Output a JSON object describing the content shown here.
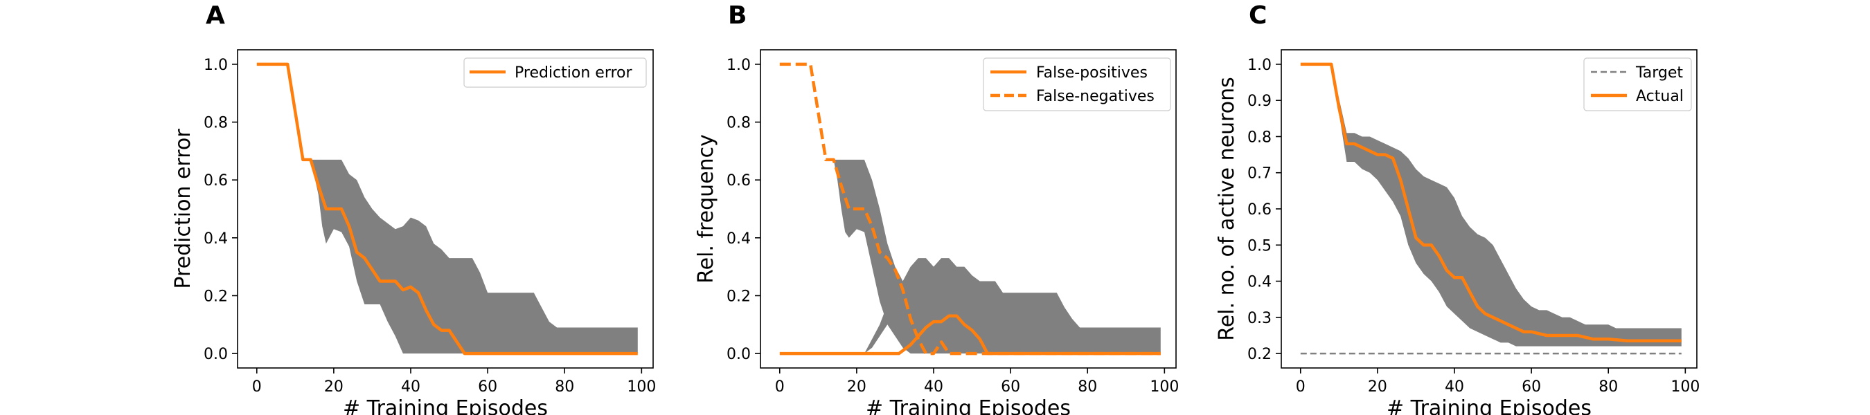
{
  "chart_data": [
    {
      "type": "line",
      "panel": "A",
      "xlabel": "# Training Episodes",
      "ylabel": "Prediction error",
      "xlim": [
        -5,
        103
      ],
      "ylim": [
        -0.05,
        1.05
      ],
      "xticks": [
        0,
        20,
        40,
        60,
        80,
        100
      ],
      "yticks": [
        0.0,
        0.2,
        0.4,
        0.6,
        0.8,
        1.0
      ],
      "ytick_decimals": 1,
      "legend_position": "upper-right",
      "band": {
        "color": "#808080",
        "x": [
          0,
          8,
          12,
          14,
          16,
          17,
          18,
          20,
          22,
          24,
          26,
          28,
          30,
          32,
          34,
          36,
          38,
          40,
          42,
          44,
          46,
          48,
          50,
          52,
          54,
          56,
          58,
          60,
          62,
          64,
          66,
          68,
          70,
          72,
          74,
          76,
          78,
          80,
          85,
          90,
          95,
          99
        ],
        "lower": [
          1.0,
          1.0,
          0.67,
          0.67,
          0.55,
          0.44,
          0.38,
          0.43,
          0.42,
          0.37,
          0.25,
          0.17,
          0.17,
          0.17,
          0.11,
          0.06,
          0.0,
          0.0,
          0.0,
          0.0,
          0.0,
          0.0,
          0.0,
          0.0,
          0.0,
          0.0,
          0.0,
          0.0,
          0.0,
          0.0,
          0.0,
          0.0,
          0.0,
          0.0,
          0.0,
          0.0,
          0.0,
          0.0,
          0.0,
          0.0,
          0.0,
          0.0
        ],
        "upper": [
          1.0,
          1.0,
          0.67,
          0.67,
          0.67,
          0.67,
          0.67,
          0.67,
          0.67,
          0.62,
          0.6,
          0.54,
          0.5,
          0.47,
          0.45,
          0.43,
          0.44,
          0.47,
          0.46,
          0.44,
          0.38,
          0.36,
          0.33,
          0.33,
          0.33,
          0.33,
          0.28,
          0.21,
          0.21,
          0.21,
          0.21,
          0.21,
          0.21,
          0.21,
          0.16,
          0.11,
          0.09,
          0.09,
          0.09,
          0.09,
          0.09,
          0.09
        ]
      },
      "series": [
        {
          "name": "Prediction error",
          "color": "#ff7f0e",
          "dash": "solid",
          "x": [
            0,
            8,
            12,
            14,
            16,
            18,
            20,
            22,
            24,
            26,
            28,
            30,
            32,
            34,
            36,
            38,
            40,
            42,
            44,
            46,
            48,
            50,
            52,
            54,
            56,
            60,
            70,
            80,
            90,
            99
          ],
          "y": [
            1.0,
            1.0,
            0.67,
            0.67,
            0.58,
            0.5,
            0.5,
            0.5,
            0.44,
            0.35,
            0.33,
            0.29,
            0.25,
            0.25,
            0.25,
            0.22,
            0.23,
            0.21,
            0.15,
            0.1,
            0.08,
            0.08,
            0.04,
            0.0,
            0.0,
            0.0,
            0.0,
            0.0,
            0.0,
            0.0
          ]
        }
      ]
    },
    {
      "type": "line",
      "panel": "B",
      "xlabel": "# Training Episodes",
      "ylabel": "Rel. frequency",
      "xlim": [
        -5,
        103
      ],
      "ylim": [
        -0.05,
        1.05
      ],
      "xticks": [
        0,
        20,
        40,
        60,
        80,
        100
      ],
      "yticks": [
        0.0,
        0.2,
        0.4,
        0.6,
        0.8,
        1.0
      ],
      "ytick_decimals": 1,
      "legend_position": "upper-right",
      "band": {
        "color": "#808080",
        "x": [
          14,
          15,
          16,
          17,
          18,
          20,
          22,
          24,
          26,
          28,
          30,
          32,
          34,
          36,
          38,
          40,
          42,
          44,
          46,
          48,
          50,
          52,
          54,
          56,
          58,
          60,
          62,
          64,
          66,
          68,
          70,
          72,
          74,
          76,
          78,
          80,
          85,
          90,
          95,
          99
        ],
        "lower": [
          0.67,
          0.6,
          0.5,
          0.42,
          0.4,
          0.43,
          0.42,
          0.3,
          0.18,
          0.1,
          0.06,
          0.02,
          0.0,
          0.0,
          0.0,
          0.0,
          0.0,
          0.0,
          0.0,
          0.0,
          0.0,
          0.0,
          0.0,
          0.0,
          0.0,
          0.0,
          0.0,
          0.0,
          0.0,
          0.0,
          0.0,
          0.0,
          0.0,
          0.0,
          0.0,
          0.0,
          0.0,
          0.0,
          0.0,
          0.0
        ],
        "upper": [
          0.67,
          0.67,
          0.67,
          0.67,
          0.67,
          0.67,
          0.67,
          0.6,
          0.5,
          0.38,
          0.3,
          0.25,
          0.3,
          0.33,
          0.33,
          0.3,
          0.33,
          0.33,
          0.3,
          0.3,
          0.27,
          0.25,
          0.25,
          0.25,
          0.21,
          0.21,
          0.21,
          0.21,
          0.21,
          0.21,
          0.21,
          0.21,
          0.16,
          0.12,
          0.09,
          0.09,
          0.09,
          0.09,
          0.09,
          0.09
        ]
      },
      "band2": {
        "color": "#808080",
        "x": [
          22,
          24,
          26,
          28,
          30,
          32,
          34
        ],
        "lower": [
          0.0,
          0.02,
          0.06,
          0.1,
          0.14,
          0.18,
          0.0
        ],
        "upper": [
          0.0,
          0.05,
          0.1,
          0.17,
          0.25,
          0.25,
          0.3
        ]
      },
      "series": [
        {
          "name": "False-positives",
          "color": "#ff7f0e",
          "dash": "solid",
          "x": [
            0,
            10,
            20,
            28,
            31,
            34,
            36,
            38,
            40,
            42,
            44,
            46,
            48,
            50,
            52,
            54,
            60,
            70,
            80,
            90,
            99
          ],
          "y": [
            0.0,
            0.0,
            0.0,
            0.0,
            0.0,
            0.03,
            0.06,
            0.09,
            0.11,
            0.11,
            0.13,
            0.13,
            0.1,
            0.08,
            0.05,
            0.0,
            0.0,
            0.0,
            0.0,
            0.0,
            0.0
          ]
        },
        {
          "name": "False-negatives",
          "color": "#ff7f0e",
          "dash": "dashed",
          "x": [
            0,
            8,
            12,
            14,
            16,
            18,
            20,
            22,
            24,
            26,
            28,
            30,
            32,
            34,
            36,
            38,
            40,
            42,
            44,
            46,
            48,
            50,
            54,
            60,
            70,
            80,
            90,
            99
          ],
          "y": [
            1.0,
            1.0,
            0.67,
            0.67,
            0.58,
            0.5,
            0.5,
            0.5,
            0.44,
            0.35,
            0.33,
            0.29,
            0.22,
            0.12,
            0.05,
            0.0,
            0.0,
            0.04,
            0.0,
            0.0,
            0.0,
            0.0,
            0.0,
            0.0,
            0.0,
            0.0,
            0.0,
            0.0
          ]
        }
      ]
    },
    {
      "type": "line",
      "panel": "C",
      "xlabel": "# Training Episodes",
      "ylabel": "Rel. no. of active neurons",
      "xlim": [
        -5,
        103
      ],
      "ylim": [
        0.16,
        1.04
      ],
      "xticks": [
        0,
        20,
        40,
        60,
        80,
        100
      ],
      "yticks": [
        0.2,
        0.3,
        0.4,
        0.5,
        0.6,
        0.7,
        0.8,
        0.9,
        1.0
      ],
      "ytick_decimals": 1,
      "legend_position": "upper-right",
      "band": {
        "color": "#808080",
        "x": [
          0,
          8,
          12,
          14,
          16,
          18,
          20,
          22,
          24,
          26,
          28,
          30,
          32,
          34,
          36,
          38,
          40,
          42,
          44,
          46,
          48,
          50,
          52,
          54,
          56,
          58,
          60,
          62,
          64,
          66,
          68,
          70,
          72,
          74,
          76,
          78,
          80,
          82,
          85,
          90,
          95,
          99
        ],
        "lower": [
          1.0,
          1.0,
          0.73,
          0.73,
          0.71,
          0.7,
          0.68,
          0.65,
          0.62,
          0.58,
          0.5,
          0.45,
          0.42,
          0.4,
          0.37,
          0.33,
          0.31,
          0.29,
          0.27,
          0.26,
          0.25,
          0.24,
          0.23,
          0.23,
          0.22,
          0.22,
          0.22,
          0.22,
          0.22,
          0.22,
          0.22,
          0.22,
          0.22,
          0.22,
          0.22,
          0.22,
          0.22,
          0.22,
          0.22,
          0.22,
          0.22,
          0.22
        ],
        "upper": [
          1.0,
          1.0,
          0.81,
          0.81,
          0.8,
          0.8,
          0.79,
          0.78,
          0.77,
          0.76,
          0.74,
          0.71,
          0.69,
          0.68,
          0.67,
          0.66,
          0.63,
          0.58,
          0.55,
          0.53,
          0.52,
          0.5,
          0.46,
          0.42,
          0.38,
          0.35,
          0.33,
          0.32,
          0.32,
          0.31,
          0.3,
          0.3,
          0.29,
          0.28,
          0.28,
          0.28,
          0.28,
          0.27,
          0.27,
          0.27,
          0.27,
          0.27
        ]
      },
      "series": [
        {
          "name": "Target",
          "color": "#808080",
          "dash": "dashed",
          "x": [
            0,
            99
          ],
          "y": [
            0.2,
            0.2
          ]
        },
        {
          "name": "Actual",
          "color": "#ff7f0e",
          "dash": "solid",
          "x": [
            0,
            8,
            10,
            12,
            14,
            16,
            18,
            20,
            22,
            24,
            26,
            28,
            30,
            32,
            34,
            36,
            38,
            40,
            42,
            44,
            46,
            48,
            50,
            52,
            54,
            56,
            58,
            60,
            64,
            68,
            72,
            76,
            80,
            85,
            90,
            95,
            99
          ],
          "y": [
            1.0,
            1.0,
            0.88,
            0.78,
            0.78,
            0.77,
            0.76,
            0.75,
            0.75,
            0.74,
            0.68,
            0.6,
            0.52,
            0.5,
            0.5,
            0.47,
            0.43,
            0.41,
            0.41,
            0.37,
            0.33,
            0.31,
            0.3,
            0.29,
            0.28,
            0.27,
            0.26,
            0.26,
            0.25,
            0.25,
            0.25,
            0.24,
            0.24,
            0.235,
            0.235,
            0.235,
            0.235
          ]
        }
      ]
    }
  ]
}
